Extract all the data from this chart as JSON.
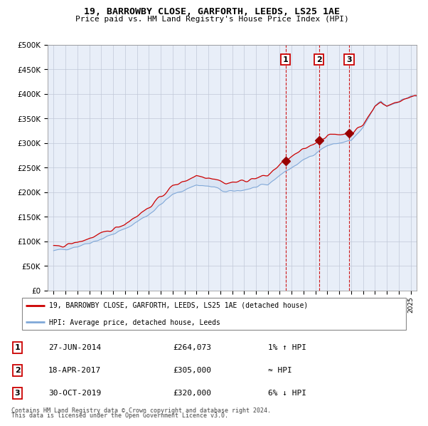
{
  "title": "19, BARROWBY CLOSE, GARFORTH, LEEDS, LS25 1AE",
  "subtitle": "Price paid vs. HM Land Registry's House Price Index (HPI)",
  "legend_label_red": "19, BARROWBY CLOSE, GARFORTH, LEEDS, LS25 1AE (detached house)",
  "legend_label_blue": "HPI: Average price, detached house, Leeds",
  "footer1": "Contains HM Land Registry data © Crown copyright and database right 2024.",
  "footer2": "This data is licensed under the Open Government Licence v3.0.",
  "transactions": [
    {
      "num": 1,
      "date": "27-JUN-2014",
      "price": 264073,
      "year": 2014.49,
      "hpi_rel": "1% ↑ HPI"
    },
    {
      "num": 2,
      "date": "18-APR-2017",
      "price": 305000,
      "year": 2017.29,
      "hpi_rel": "≈ HPI"
    },
    {
      "num": 3,
      "date": "30-OCT-2019",
      "price": 320000,
      "year": 2019.83,
      "hpi_rel": "6% ↓ HPI"
    }
  ],
  "ylim": [
    0,
    500000
  ],
  "ytick_values": [
    0,
    50000,
    100000,
    150000,
    200000,
    250000,
    300000,
    350000,
    400000,
    450000,
    500000
  ],
  "ytick_labels": [
    "£0",
    "£50K",
    "£100K",
    "£150K",
    "£200K",
    "£250K",
    "£300K",
    "£350K",
    "£400K",
    "£450K",
    "£500K"
  ],
  "xlim_start": 1994.5,
  "xlim_end": 2025.5,
  "background_color": "#ffffff",
  "plot_bg_color": "#e8eef8",
  "grid_color": "#c0c8d8",
  "hpi_fill_color": "#c8d8f0",
  "hpi_line_color": "#80a8d8",
  "price_color": "#cc0000",
  "vline_color": "#cc0000",
  "marker_color": "#990000",
  "transaction_box_color": "#cc0000"
}
